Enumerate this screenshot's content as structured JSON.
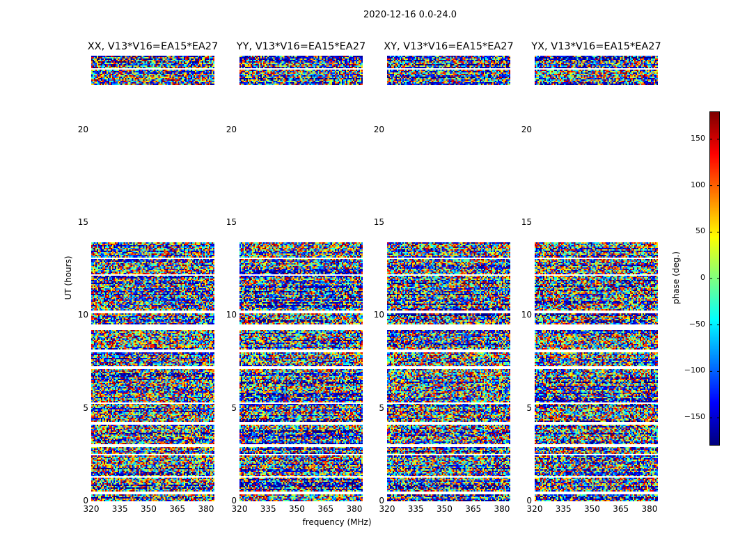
{
  "chart_data": {
    "type": "heatmap",
    "title": "2020-12-16 0.0-24.0",
    "xlabel": "frequency (MHz)",
    "ylabel": "UT (hours)",
    "xlim": [
      320,
      384.4
    ],
    "ylim": [
      0,
      24
    ],
    "xticks": [
      320,
      335,
      350,
      365,
      380
    ],
    "yticks": [
      0,
      5,
      10,
      15,
      20
    ],
    "panels": [
      {
        "title": "XX, V13*V16=EA15*EA27",
        "seed": 11
      },
      {
        "title": "YY, V13*V16=EA15*EA27",
        "seed": 23
      },
      {
        "title": "XY, V13*V16=EA15*EA27",
        "seed": 37
      },
      {
        "title": "YX, V13*V16=EA15*EA27",
        "seed": 51
      }
    ],
    "data_ut_ranges": [
      [
        0.0,
        7.15
      ],
      [
        7.3,
        9.25
      ],
      [
        9.5,
        13.95
      ],
      [
        22.45,
        24.0
      ]
    ],
    "gap_ut_lines": [
      0.45,
      1.3,
      2.5,
      3.0,
      4.2,
      5.3,
      8.1,
      10.2,
      12.2,
      13.1,
      23.3
    ],
    "colorbar": {
      "label": "phase (deg.)",
      "range": [
        -180,
        180
      ],
      "ticks": [
        -150,
        -100,
        -50,
        0,
        50,
        100,
        150
      ],
      "colormap": "jet"
    }
  }
}
